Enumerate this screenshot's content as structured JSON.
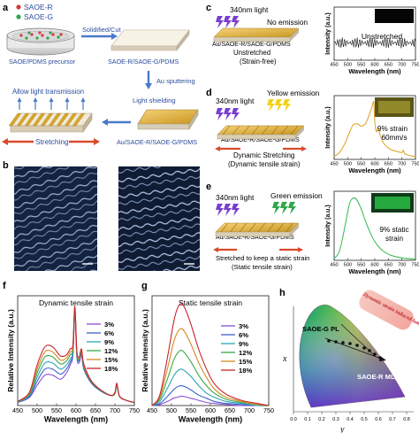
{
  "panels": {
    "a": {
      "letter": "a",
      "legend_r": "SAOE-R",
      "legend_g": "SAOE-G",
      "precursor": "SAOE/PDMS precursor",
      "solidified": "Solidified/Cut",
      "film": "SAOE-R/SAOE-G/PDMS",
      "sputter": "Au sputtering",
      "transmit": "Allow light transmission",
      "shielding": "Light shielding",
      "stretching": "Stretching",
      "coated": "Au/SAOE-R/SAOE-G/PDMS"
    },
    "b": {
      "letter": "b"
    },
    "c": {
      "letter": "c",
      "light": "340nm light",
      "emission": "No emission",
      "device": "Au/SAOE-R/SAOE-G/PDMS",
      "state": "Unstretched",
      "state2": "(Strain-free)",
      "plot_label": "Unstretched",
      "ylabel": "Intensity (a.u.)",
      "xlabel": "Wavelength (nm)",
      "ticks": [
        "450",
        "500",
        "550",
        "600",
        "650",
        "700",
        "750"
      ]
    },
    "d": {
      "letter": "d",
      "light": "340nm light",
      "emission": "Yellow emission",
      "device": "Au/SAOE-R/SAOE-G/PDMS",
      "state": "Dynamic Stretching",
      "state2": "(Dynamic tensile strain)",
      "plot_label1": "9% strain",
      "plot_label2": "60mm/s",
      "ylabel": "Intensity (a.u.)",
      "xlabel": "Wavelength (nm)",
      "ticks": [
        "450",
        "500",
        "550",
        "600",
        "650",
        "700",
        "750"
      ]
    },
    "e": {
      "letter": "e",
      "light": "340nm light",
      "emission": "Green emission",
      "device": "Au/SAOE-R/SAOE-G/PDMS",
      "state": "Stretched to keep a static strain",
      "state2": "(Static tensile strain)",
      "plot_label1": "9% static",
      "plot_label2": "strain",
      "ylabel": "Intensity (a.u.)",
      "xlabel": "Wavelength (nm)",
      "ticks": [
        "450",
        "500",
        "550",
        "600",
        "650",
        "700",
        "750"
      ]
    },
    "f": {
      "letter": "f",
      "title": "Dynamic tensile strain",
      "ylabel": "Relative Intensity (a.u.)",
      "xlabel": "Wavelength (nm)",
      "ticks": [
        "450",
        "500",
        "550",
        "600",
        "650",
        "700",
        "750"
      ]
    },
    "g": {
      "letter": "g",
      "title": "Static tensile strain",
      "ylabel": "Relative Intensity (a.u.)",
      "xlabel": "Wavelength (nm)",
      "ticks": [
        "450",
        "500",
        "550",
        "600",
        "650",
        "700",
        "750"
      ]
    },
    "h": {
      "letter": "h",
      "g_label": "SAOE-G  PL",
      "r_label": "SAOE-R  ML",
      "banner": "Dynamic strain induced luminescence",
      "x_axis": "x",
      "y_axis": "y",
      "xticks": [
        "0.0",
        "0.1",
        "0.2",
        "0.3",
        "0.4",
        "0.5",
        "0.6",
        "0.7",
        "0.8"
      ]
    }
  },
  "legend": {
    "entries": [
      "3%",
      "6%",
      "9%",
      "12%",
      "15%",
      "18%"
    ],
    "colors": [
      "#8a4fd6",
      "#3b5fd0",
      "#2aa6b8",
      "#3aa64a",
      "#d48a1f",
      "#c8232c"
    ]
  },
  "chart_data": [
    {
      "type": "line",
      "panel": "c",
      "xlabel": "Wavelength (nm)",
      "ylabel": "Intensity (a.u.)",
      "xlim": [
        450,
        750
      ],
      "series": [
        {
          "x": [
            450,
            750
          ],
          "y": [
            0.35,
            0.35
          ]
        }
      ]
    },
    {
      "type": "line",
      "panel": "d",
      "xlabel": "Wavelength (nm)",
      "ylabel": "Intensity (a.u.)",
      "xlim": [
        450,
        750
      ],
      "series": [
        {
          "x": [
            450,
            470,
            490,
            505,
            520,
            535,
            550,
            565,
            575,
            583,
            590,
            596,
            600,
            606,
            612,
            620,
            630,
            645,
            660,
            680,
            700,
            705,
            710,
            720,
            735,
            750
          ],
          "y": [
            0.05,
            0.12,
            0.28,
            0.45,
            0.6,
            0.62,
            0.58,
            0.62,
            0.72,
            0.82,
            0.92,
            1.0,
            0.65,
            0.48,
            0.55,
            0.42,
            0.3,
            0.22,
            0.17,
            0.14,
            0.12,
            0.16,
            0.1,
            0.08,
            0.06,
            0.05
          ]
        }
      ]
    },
    {
      "type": "line",
      "panel": "e",
      "xlabel": "Wavelength (nm)",
      "ylabel": "Intensity (a.u.)",
      "xlim": [
        450,
        750
      ],
      "series": [
        {
          "x": [
            450,
            470,
            490,
            505,
            515,
            525,
            535,
            550,
            570,
            590,
            610,
            630,
            660,
            700,
            750
          ],
          "y": [
            0.03,
            0.15,
            0.55,
            0.88,
            0.98,
            1.0,
            0.96,
            0.82,
            0.58,
            0.38,
            0.24,
            0.15,
            0.08,
            0.04,
            0.02
          ]
        }
      ]
    },
    {
      "type": "line",
      "panel": "f",
      "title": "Dynamic tensile strain",
      "xlabel": "Wavelength (nm)",
      "ylabel": "Relative Intensity (a.u.)",
      "xlim": [
        450,
        750
      ],
      "categories": [
        450,
        480,
        500,
        520,
        540,
        560,
        575,
        585,
        592,
        597,
        602,
        608,
        614,
        620,
        640,
        665,
        690,
        700,
        705,
        712,
        730,
        750
      ],
      "series": [
        {
          "name": "3%",
          "values": [
            0.03,
            0.08,
            0.2,
            0.3,
            0.3,
            0.26,
            0.32,
            0.4,
            0.5,
            0.92,
            0.48,
            0.42,
            0.5,
            0.36,
            0.22,
            0.14,
            0.1,
            0.12,
            0.2,
            0.09,
            0.05,
            0.03
          ]
        },
        {
          "name": "6%",
          "values": [
            0.03,
            0.09,
            0.24,
            0.36,
            0.36,
            0.31,
            0.36,
            0.43,
            0.52,
            0.94,
            0.5,
            0.44,
            0.52,
            0.37,
            0.22,
            0.14,
            0.1,
            0.12,
            0.2,
            0.09,
            0.05,
            0.03
          ]
        },
        {
          "name": "9%",
          "values": [
            0.03,
            0.1,
            0.28,
            0.42,
            0.42,
            0.36,
            0.4,
            0.46,
            0.54,
            0.95,
            0.51,
            0.45,
            0.53,
            0.38,
            0.23,
            0.14,
            0.1,
            0.12,
            0.2,
            0.09,
            0.05,
            0.03
          ]
        },
        {
          "name": "12%",
          "values": [
            0.04,
            0.11,
            0.32,
            0.48,
            0.48,
            0.41,
            0.44,
            0.5,
            0.56,
            0.96,
            0.52,
            0.46,
            0.54,
            0.39,
            0.23,
            0.15,
            0.1,
            0.12,
            0.21,
            0.09,
            0.05,
            0.03
          ]
        },
        {
          "name": "15%",
          "values": [
            0.04,
            0.12,
            0.36,
            0.53,
            0.53,
            0.45,
            0.47,
            0.53,
            0.58,
            0.97,
            0.53,
            0.47,
            0.55,
            0.4,
            0.24,
            0.15,
            0.1,
            0.13,
            0.21,
            0.09,
            0.05,
            0.03
          ]
        },
        {
          "name": "18%",
          "values": [
            0.04,
            0.13,
            0.4,
            0.58,
            0.58,
            0.49,
            0.5,
            0.56,
            0.6,
            0.98,
            0.54,
            0.48,
            0.56,
            0.41,
            0.24,
            0.15,
            0.1,
            0.13,
            0.22,
            0.09,
            0.05,
            0.03
          ]
        }
      ]
    },
    {
      "type": "line",
      "panel": "g",
      "title": "Static tensile strain",
      "xlabel": "Wavelength (nm)",
      "ylabel": "Relative Intensity (a.u.)",
      "xlim": [
        450,
        750
      ],
      "categories": [
        450,
        470,
        490,
        505,
        515,
        525,
        535,
        550,
        570,
        590,
        610,
        640,
        680,
        720,
        750
      ],
      "series": [
        {
          "name": "3%",
          "values": [
            0.0,
            0.01,
            0.04,
            0.07,
            0.08,
            0.09,
            0.085,
            0.07,
            0.05,
            0.03,
            0.02,
            0.01,
            0.0,
            0.0,
            0.0
          ]
        },
        {
          "name": "6%",
          "values": [
            0.0,
            0.02,
            0.09,
            0.15,
            0.18,
            0.19,
            0.18,
            0.15,
            0.1,
            0.07,
            0.04,
            0.02,
            0.01,
            0.0,
            0.0
          ]
        },
        {
          "name": "9%",
          "values": [
            0.0,
            0.04,
            0.17,
            0.28,
            0.33,
            0.35,
            0.33,
            0.28,
            0.19,
            0.12,
            0.08,
            0.04,
            0.02,
            0.0,
            0.0
          ]
        },
        {
          "name": "12%",
          "values": [
            0.0,
            0.06,
            0.26,
            0.43,
            0.5,
            0.53,
            0.5,
            0.42,
            0.29,
            0.19,
            0.12,
            0.06,
            0.03,
            0.01,
            0.0
          ]
        },
        {
          "name": "15%",
          "values": [
            0.0,
            0.08,
            0.36,
            0.6,
            0.7,
            0.74,
            0.7,
            0.59,
            0.41,
            0.27,
            0.16,
            0.08,
            0.04,
            0.01,
            0.0
          ]
        },
        {
          "name": "18%",
          "values": [
            0.0,
            0.1,
            0.47,
            0.79,
            0.93,
            0.98,
            0.93,
            0.78,
            0.54,
            0.35,
            0.21,
            0.11,
            0.05,
            0.02,
            0.0
          ]
        }
      ]
    }
  ]
}
